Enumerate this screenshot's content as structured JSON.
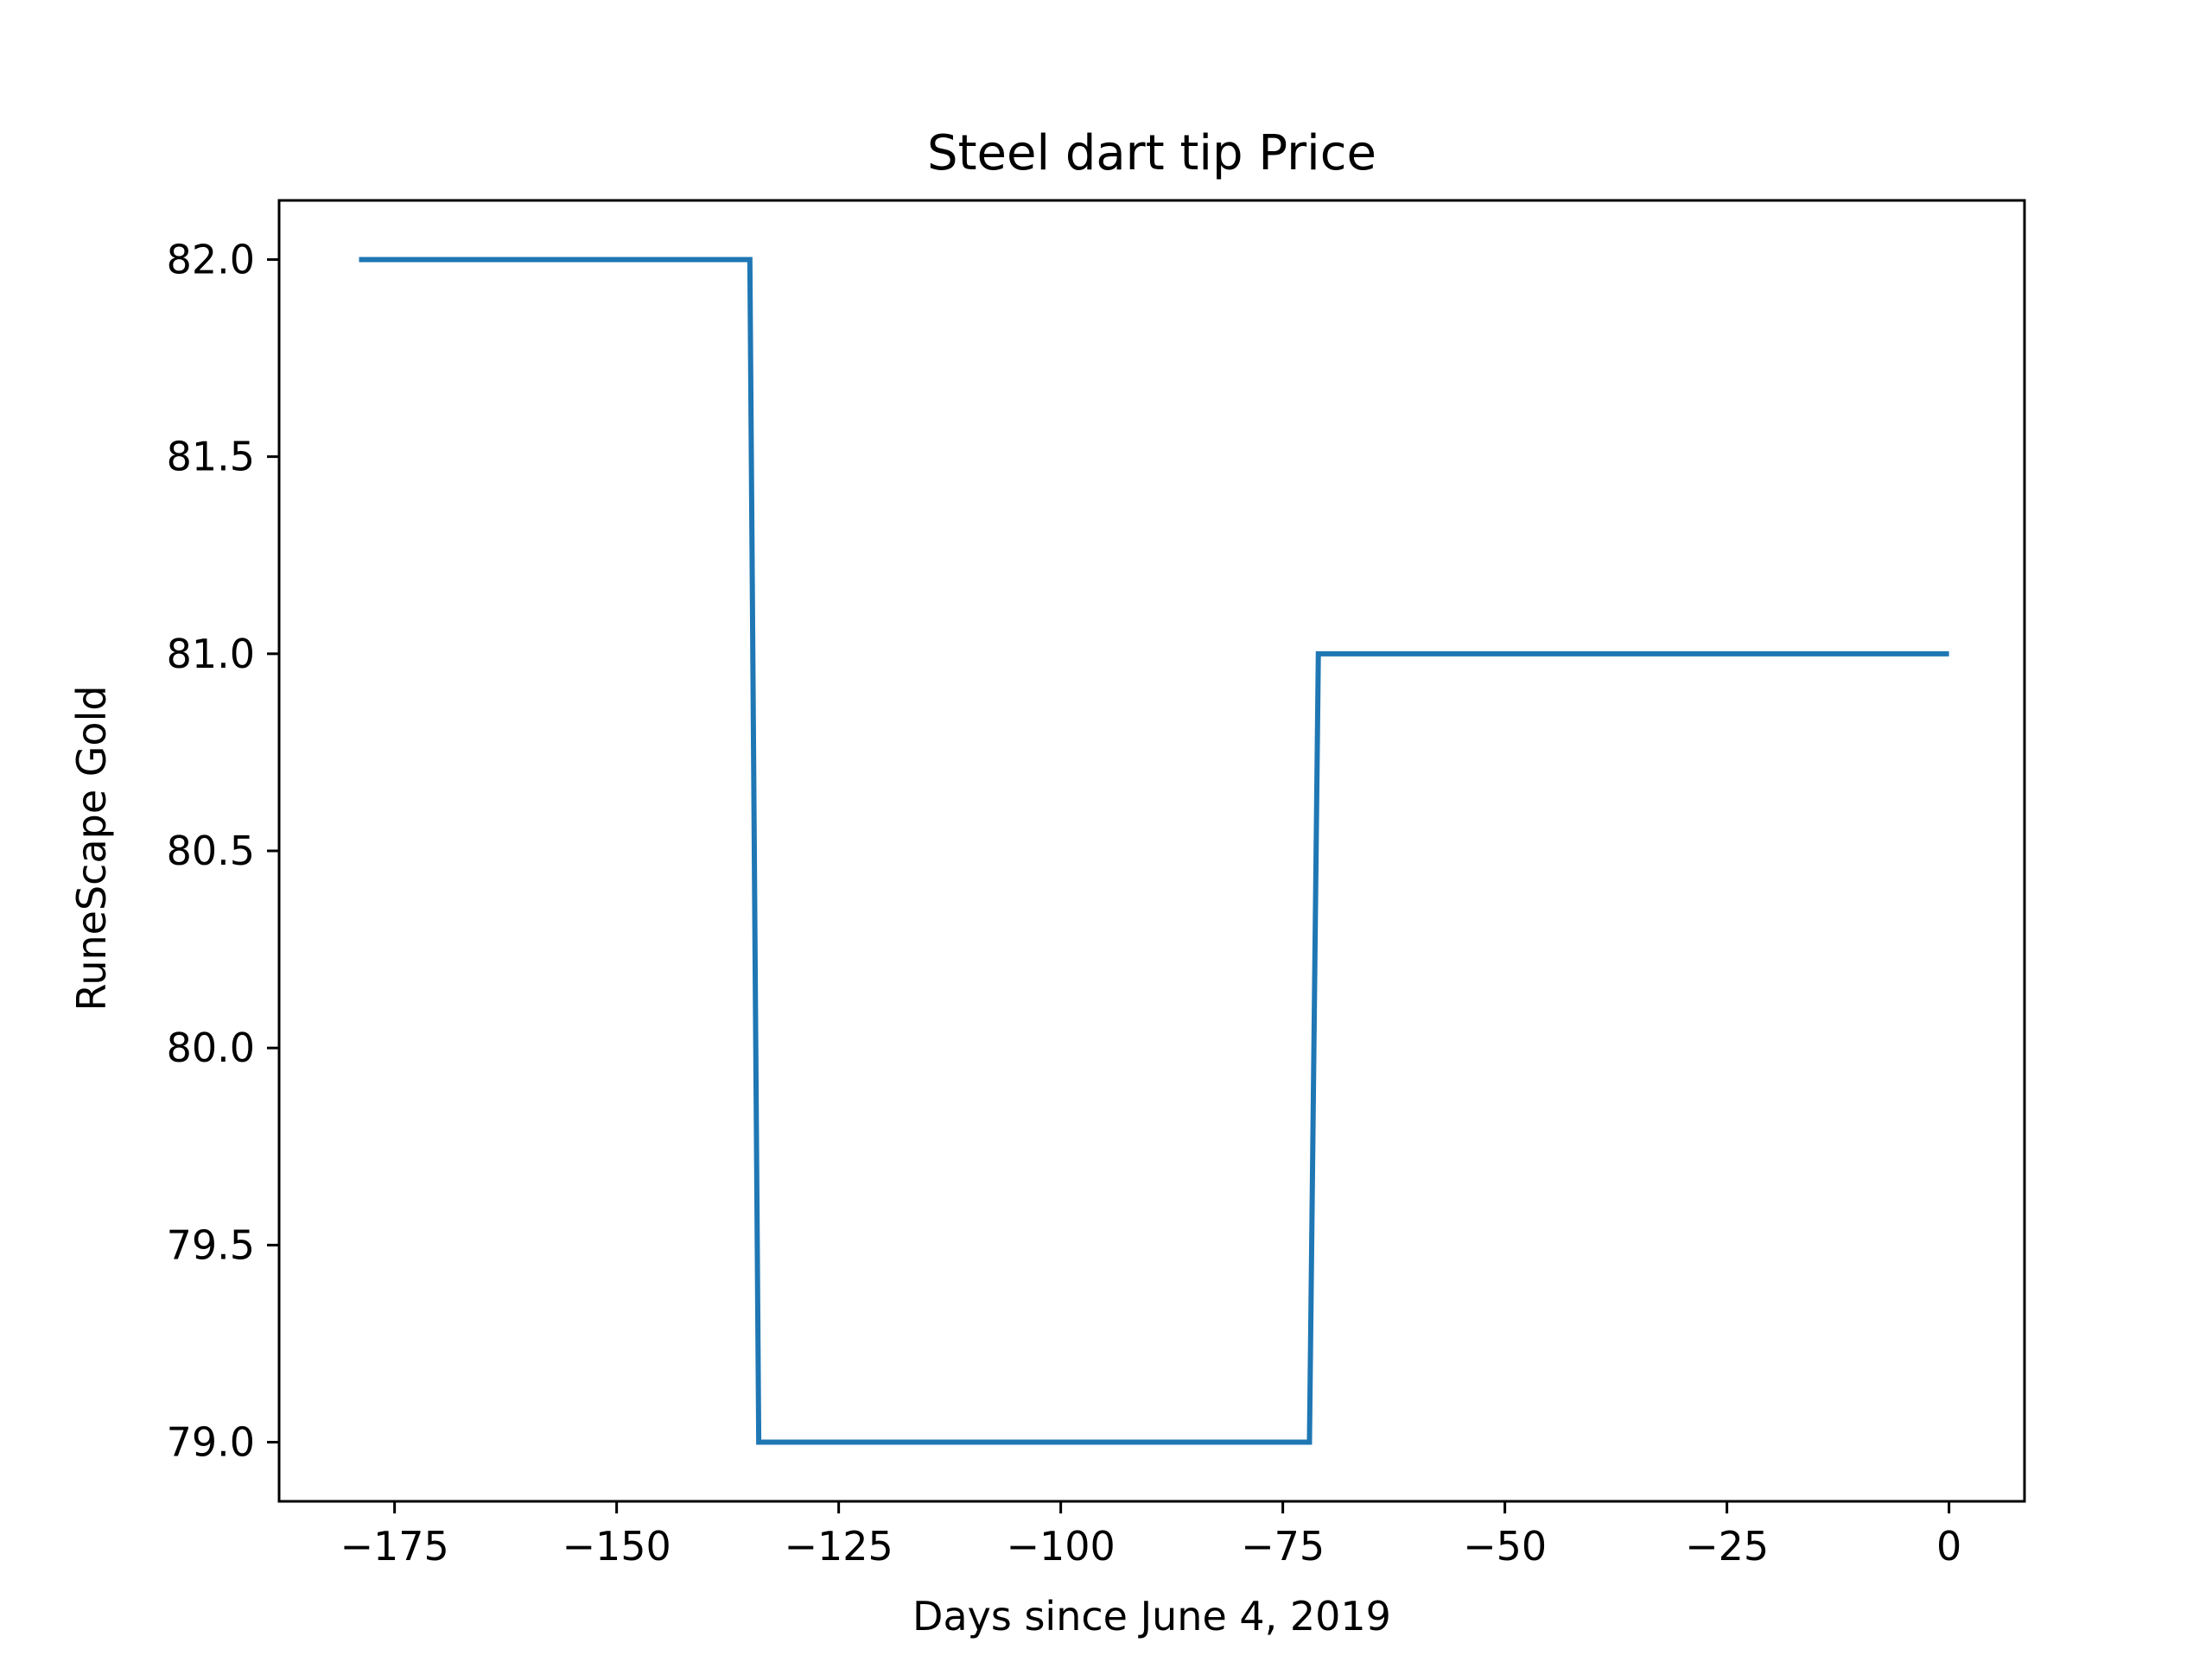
{
  "chart_data": {
    "type": "line",
    "title": "Steel dart tip Price",
    "xlabel": "Days since June 4, 2019",
    "ylabel": "RuneScape Gold",
    "xlim": [
      -188,
      8.5
    ],
    "ylim": [
      78.85,
      82.15
    ],
    "xticks": [
      -175,
      -150,
      -125,
      -100,
      -75,
      -50,
      -25,
      0
    ],
    "xtick_labels": [
      "−175",
      "−150",
      "−125",
      "−100",
      "−75",
      "−50",
      "−25",
      "0"
    ],
    "yticks": [
      79.0,
      79.5,
      80.0,
      80.5,
      81.0,
      81.5,
      82.0
    ],
    "ytick_labels": [
      "79.0",
      "79.5",
      "80.0",
      "80.5",
      "81.0",
      "81.5",
      "82.0"
    ],
    "grid": false,
    "series": [
      {
        "color": "#1f77b4",
        "x": [
          -179,
          -135,
          -134,
          -72,
          -71,
          0
        ],
        "y": [
          82,
          82,
          79,
          79,
          81,
          81
        ]
      }
    ]
  }
}
